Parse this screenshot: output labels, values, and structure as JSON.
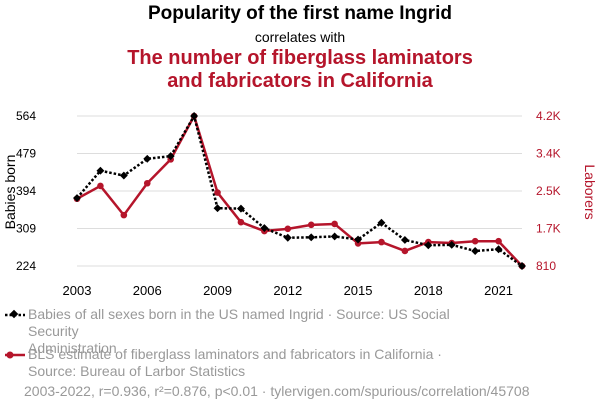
{
  "header": {
    "title": "Popularity of the first name Ingrid",
    "subtitle": "correlates with",
    "title2_line1": "The number of fiberglass laminators",
    "title2_line2": "and fabricators in California"
  },
  "legend": {
    "series1_line1": "Babies of all sexes born in the US named Ingrid · Source: US Social Security",
    "series1_line2": "Administration",
    "series2_line1": "BLS estimate of fiberglass laminators and fabricators in California ·",
    "series2_line2": "Source: Bureau of Larbor Statistics"
  },
  "footer": {
    "text": "2003-2022, r=0.936, r²=0.876, p<0.01 · tylervigen.com/spurious/correlation/45708"
  },
  "colors": {
    "series1": "#000000",
    "series2": "#b5152b",
    "grid": "#dddddd",
    "muted": "#999999"
  },
  "chart_data": {
    "type": "line",
    "x": [
      2003,
      2004,
      2005,
      2006,
      2007,
      2008,
      2009,
      2010,
      2011,
      2012,
      2013,
      2014,
      2015,
      2016,
      2017,
      2018,
      2019,
      2020,
      2021,
      2022
    ],
    "xticks": [
      "2003",
      "2006",
      "2009",
      "2012",
      "2015",
      "2018",
      "2021"
    ],
    "xlim": [
      2003,
      2022
    ],
    "left_axis": {
      "label": "Babies born",
      "ticks": [
        "224",
        "309",
        "394",
        "479",
        "564"
      ],
      "ylim": [
        224,
        564
      ]
    },
    "right_axis": {
      "label": "Laborers",
      "ticks": [
        "810",
        "1.7K",
        "2.5K",
        "3.4K",
        "4.2K"
      ],
      "ylim": [
        810,
        4200
      ]
    },
    "grid": "horizontal",
    "series": [
      {
        "name": "Babies of all sexes born in the US named Ingrid",
        "axis": "left",
        "values": [
          378,
          440,
          429,
          467,
          473,
          564,
          355,
          354,
          310,
          288,
          289,
          291,
          284,
          322,
          283,
          271,
          272,
          258,
          262,
          224
        ]
      },
      {
        "name": "BLS estimate of fiberglass laminators and fabricators in California",
        "axis": "right",
        "values": [
          2330,
          2620,
          1960,
          2680,
          3220,
          4200,
          2470,
          1800,
          1600,
          1650,
          1740,
          1760,
          1320,
          1350,
          1150,
          1350,
          1330,
          1370,
          1370,
          810
        ]
      }
    ]
  }
}
